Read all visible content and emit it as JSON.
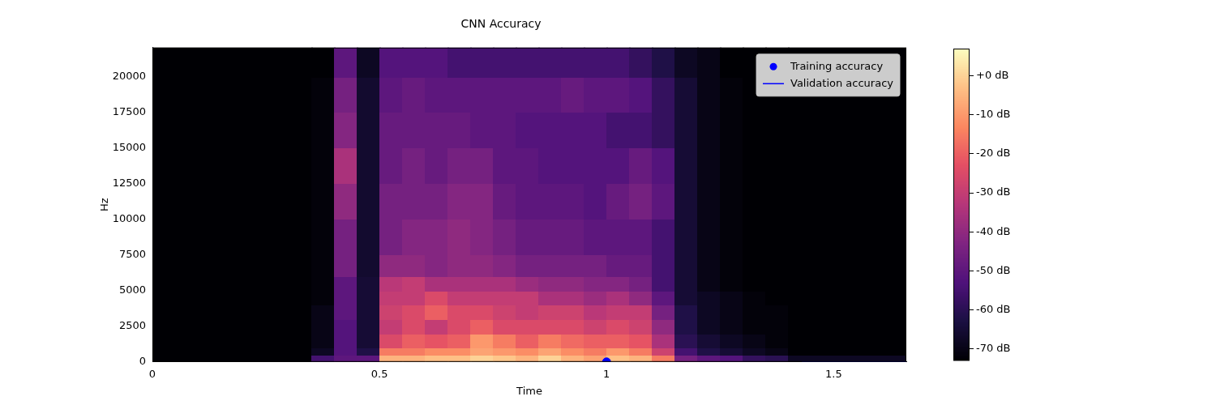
{
  "chart_data": {
    "type": "heatmap",
    "title": "CNN Accuracy",
    "x_label": "Time",
    "y_label": "Hz",
    "xlim": [
      0,
      1.66
    ],
    "ylim": [
      0,
      22050
    ],
    "xticks": [
      0,
      0.5,
      1,
      1.5
    ],
    "yticks": [
      0,
      2500,
      5000,
      7500,
      10000,
      12500,
      15000,
      17500,
      20000
    ],
    "grid": false,
    "legend": "upper right",
    "heatmap": {
      "x_bins": [
        0,
        0.35,
        0.4,
        0.45,
        0.5,
        0.55,
        0.6,
        0.65,
        0.7,
        0.75,
        0.8,
        0.85,
        0.9,
        0.95,
        1.0,
        1.05,
        1.1,
        1.15,
        1.2,
        1.25,
        1.3,
        1.35,
        1.4,
        1.66
      ],
      "y_bins": [
        0,
        500,
        1000,
        2000,
        3000,
        4000,
        5000,
        6000,
        7500,
        10000,
        12500,
        15000,
        17500,
        20000,
        22050
      ],
      "cells": [
        [
          -73,
          -55,
          -50,
          -50,
          -5,
          -5,
          -3,
          -3,
          0,
          -2,
          -5,
          0,
          -5,
          -8,
          -3,
          -5,
          -15,
          -45,
          -50,
          -52,
          -58,
          -60,
          -68
        ],
        [
          -73,
          -68,
          -52,
          -62,
          -15,
          -15,
          -12,
          -12,
          -8,
          -10,
          -12,
          -8,
          -12,
          -15,
          -10,
          -15,
          -28,
          -55,
          -62,
          -65,
          -68,
          -70,
          -73
        ],
        [
          -73,
          -70,
          -52,
          -65,
          -25,
          -20,
          -22,
          -20,
          -10,
          -15,
          -20,
          -15,
          -18,
          -20,
          -20,
          -22,
          -35,
          -60,
          -65,
          -68,
          -70,
          -72,
          -73
        ],
        [
          -73,
          -70,
          -52,
          -65,
          -30,
          -25,
          -30,
          -25,
          -20,
          -25,
          -25,
          -25,
          -25,
          -28,
          -25,
          -28,
          -40,
          -62,
          -68,
          -70,
          -72,
          -72,
          -73
        ],
        [
          -73,
          -70,
          -50,
          -65,
          -28,
          -25,
          -20,
          -25,
          -25,
          -28,
          -30,
          -28,
          -28,
          -32,
          -30,
          -30,
          -45,
          -62,
          -68,
          -70,
          -72,
          -72,
          -73
        ],
        [
          -73,
          -72,
          -50,
          -65,
          -30,
          -30,
          -25,
          -30,
          -30,
          -30,
          -30,
          -35,
          -35,
          -38,
          -35,
          -40,
          -50,
          -65,
          -68,
          -70,
          -72,
          -73,
          -73
        ],
        [
          -73,
          -72,
          -50,
          -65,
          -32,
          -30,
          -35,
          -35,
          -35,
          -35,
          -38,
          -40,
          -40,
          -42,
          -42,
          -45,
          -55,
          -65,
          -70,
          -72,
          -73,
          -73,
          -73
        ],
        [
          -73,
          -72,
          -45,
          -66,
          -40,
          -40,
          -42,
          -40,
          -40,
          -42,
          -45,
          -45,
          -45,
          -45,
          -48,
          -48,
          -55,
          -65,
          -70,
          -72,
          -73,
          -73,
          -73
        ],
        [
          -73,
          -72,
          -45,
          -66,
          -45,
          -42,
          -42,
          -40,
          -42,
          -45,
          -48,
          -48,
          -48,
          -50,
          -50,
          -50,
          -55,
          -65,
          -70,
          -72,
          -73,
          -73,
          -73
        ],
        [
          -73,
          -72,
          -40,
          -66,
          -45,
          -45,
          -45,
          -42,
          -42,
          -48,
          -50,
          -50,
          -50,
          -52,
          -48,
          -45,
          -50,
          -65,
          -70,
          -72,
          -73,
          -73,
          -73
        ],
        [
          -73,
          -72,
          -35,
          -66,
          -48,
          -45,
          -48,
          -45,
          -45,
          -50,
          -50,
          -52,
          -52,
          -52,
          -52,
          -48,
          -52,
          -65,
          -70,
          -72,
          -73,
          -73,
          -73
        ],
        [
          -73,
          -72,
          -42,
          -66,
          -48,
          -48,
          -48,
          -48,
          -50,
          -50,
          -52,
          -52,
          -52,
          -52,
          -55,
          -55,
          -58,
          -65,
          -70,
          -72,
          -73,
          -73,
          -73
        ],
        [
          -73,
          -72,
          -45,
          -66,
          -50,
          -48,
          -50,
          -50,
          -50,
          -50,
          -50,
          -50,
          -48,
          -50,
          -50,
          -52,
          -58,
          -65,
          -70,
          -72,
          -73,
          -73,
          -73
        ],
        [
          -73,
          -73,
          -50,
          -68,
          -52,
          -52,
          -52,
          -55,
          -55,
          -55,
          -55,
          -55,
          -55,
          -55,
          -55,
          -58,
          -62,
          -68,
          -70,
          -73,
          -73,
          -73,
          -73
        ]
      ],
      "colorbar": {
        "range": [
          -73,
          7
        ],
        "ticks": [
          {
            "value": 0,
            "label": "+0 dB"
          },
          {
            "value": -10,
            "label": "-10 dB"
          },
          {
            "value": -20,
            "label": "-20 dB"
          },
          {
            "value": -30,
            "label": "-30 dB"
          },
          {
            "value": -40,
            "label": "-40 dB"
          },
          {
            "value": -50,
            "label": "-50 dB"
          },
          {
            "value": -60,
            "label": "-60 dB"
          },
          {
            "value": -70,
            "label": "-70 dB"
          }
        ]
      }
    },
    "series": [
      {
        "name": "Training accuracy",
        "type": "scatter",
        "color": "#0000ff",
        "marker": "circle",
        "x": [
          1
        ],
        "values": [
          0
        ]
      },
      {
        "name": "Validation accuracy",
        "type": "line",
        "color": "#0000ff",
        "line_style": "solid",
        "x": [
          1.43,
          1.66
        ],
        "values": [
          0,
          0
        ]
      }
    ]
  }
}
